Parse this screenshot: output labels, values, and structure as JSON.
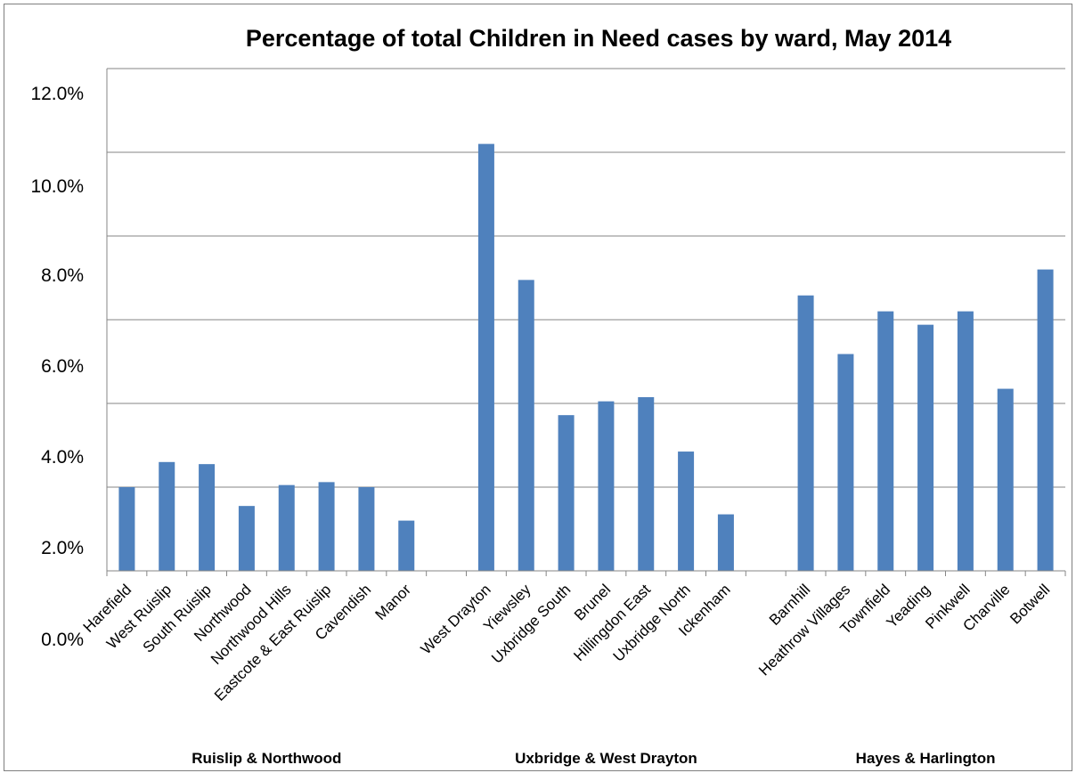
{
  "chart_data": {
    "type": "bar",
    "title": "Percentage of total Children in Need cases by ward, May 2014",
    "xlabel": "",
    "ylabel": "",
    "ylim": [
      0,
      12
    ],
    "yticks": [
      "0.0%",
      "2.0%",
      "4.0%",
      "6.0%",
      "8.0%",
      "10.0%",
      "12.0%"
    ],
    "grid": true,
    "legend": "none",
    "bar_color": "#4f81bd",
    "categories": [
      "Harefield",
      "West Ruislip",
      "South Ruislip",
      "Northwood",
      "Northwood Hills",
      "Eastcote & East Ruislip",
      "Cavendish",
      "Manor",
      "",
      "West Drayton",
      "Yiewsley",
      "Uxbridge South",
      "Brunel",
      "Hillingdon East",
      "Uxbridge North",
      "Ickenham",
      "",
      "Barnhill",
      "Heathrow Villages",
      "Townfield",
      "Yeading",
      "Pinkwell",
      "Charville",
      "Botwell"
    ],
    "values": [
      2.0,
      2.6,
      2.55,
      1.55,
      2.05,
      2.12,
      2.0,
      1.2,
      null,
      10.2,
      6.95,
      3.72,
      4.05,
      4.15,
      2.85,
      1.35,
      null,
      6.58,
      5.18,
      6.2,
      5.88,
      6.2,
      4.35,
      7.2
    ],
    "groups": [
      {
        "label": "Ruislip & Northwood",
        "from": 0,
        "to": 7
      },
      {
        "label": "Uxbridge & West Drayton",
        "from": 9,
        "to": 15
      },
      {
        "label": "Hayes & Harlington",
        "from": 17,
        "to": 23
      }
    ]
  }
}
